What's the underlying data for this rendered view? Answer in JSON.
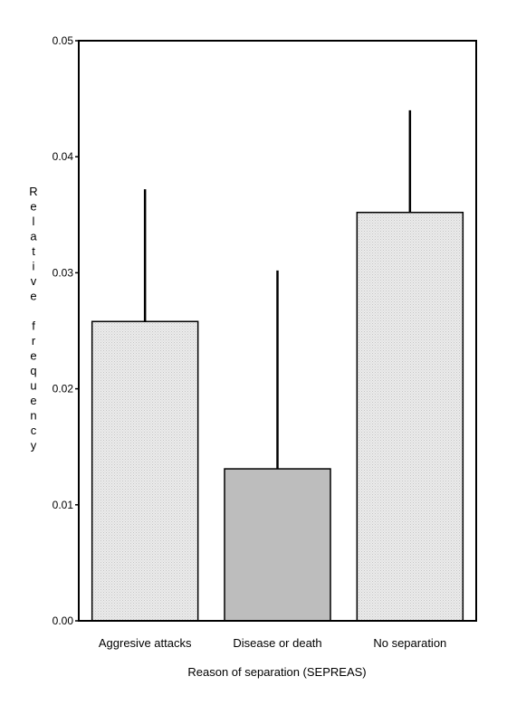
{
  "chart_data": {
    "type": "bar",
    "categories": [
      "Aggresive attacks",
      "Disease or death",
      "No separation"
    ],
    "values": [
      0.0258,
      0.0131,
      0.0352
    ],
    "error_upper": [
      0.0372,
      0.0302,
      0.044
    ],
    "bar_colors": [
      "#e4e4e4",
      "#bdbdbd",
      "#e6e6e6"
    ],
    "ylim": [
      0,
      0.05
    ],
    "yticks": [
      "0.00",
      "0.01",
      "0.02",
      "0.03",
      "0.04",
      "0.05"
    ],
    "ylabel": "Relative frequency",
    "xlabel": "Reason of separation (SEPREAS)",
    "grid": false
  }
}
